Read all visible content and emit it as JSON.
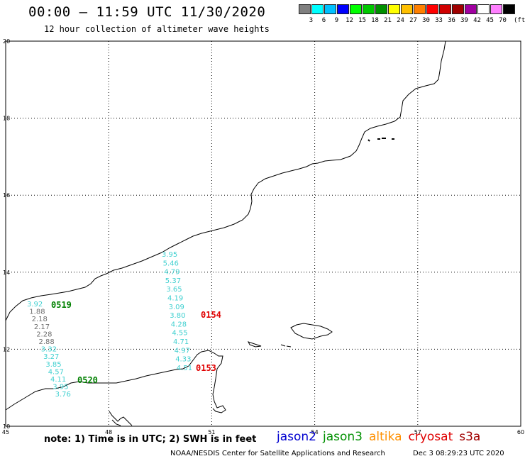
{
  "header": {
    "title": "00:00 – 11:59 UTC 11/30/2020",
    "subtitle": "12 hour collection of altimeter wave heights"
  },
  "legend": {
    "colors": [
      "#808080",
      "#00ffff",
      "#00c0ff",
      "#0000ff",
      "#00ff00",
      "#00c800",
      "#009000",
      "#ffff00",
      "#ffc000",
      "#ff8000",
      "#ff0000",
      "#d00000",
      "#a00000",
      "#a000a0",
      "#ffffff",
      "#ff80ff",
      "#000000"
    ],
    "labels": [
      "3",
      "6",
      "9",
      "12",
      "15",
      "18",
      "21",
      "24",
      "27",
      "30",
      "33",
      "36",
      "39",
      "42",
      "45",
      "70"
    ],
    "unit": "(ft)"
  },
  "axes": {
    "lon_ticks": [
      "45",
      "48",
      "51",
      "54",
      "57",
      "60"
    ],
    "lat_ticks": [
      "20",
      "18",
      "16",
      "14",
      "12",
      "10"
    ]
  },
  "passes": [
    {
      "label": "0519",
      "color": "#008000"
    },
    {
      "label": "0520",
      "color": "#008000"
    },
    {
      "label": "0154",
      "color": "#e00000"
    },
    {
      "label": "0153",
      "color": "#e00000"
    }
  ],
  "track_west": [
    {
      "v": "3.92",
      "color": "#40d0d0"
    },
    {
      "v": "1.88",
      "color": "#707070"
    },
    {
      "v": "2.18",
      "color": "#707070"
    },
    {
      "v": "2.17",
      "color": "#707070"
    },
    {
      "v": "2.28",
      "color": "#707070"
    },
    {
      "v": "2.88",
      "color": "#707070"
    },
    {
      "v": "3.32",
      "color": "#40d0d0"
    },
    {
      "v": "3.27",
      "color": "#40d0d0"
    },
    {
      "v": "3.85",
      "color": "#40d0d0"
    },
    {
      "v": "4.57",
      "color": "#40d0d0"
    },
    {
      "v": "4.11",
      "color": "#40d0d0"
    },
    {
      "v": "3.95",
      "color": "#40d0d0"
    },
    {
      "v": "3.76",
      "color": "#40d0d0"
    }
  ],
  "track_east": [
    {
      "v": "3.95",
      "color": "#40d0d0"
    },
    {
      "v": "5.46",
      "color": "#40d0d0"
    },
    {
      "v": "4.79",
      "color": "#40d0d0"
    },
    {
      "v": "5.37",
      "color": "#40d0d0"
    },
    {
      "v": "3.65",
      "color": "#40d0d0"
    },
    {
      "v": "4.19",
      "color": "#40d0d0"
    },
    {
      "v": "3.09",
      "color": "#40d0d0"
    },
    {
      "v": "3.80",
      "color": "#40d0d0"
    },
    {
      "v": "4.28",
      "color": "#40d0d0"
    },
    {
      "v": "4.55",
      "color": "#40d0d0"
    },
    {
      "v": "4.71",
      "color": "#40d0d0"
    },
    {
      "v": "4.97",
      "color": "#40d0d0"
    },
    {
      "v": "4.33",
      "color": "#40d0d0"
    },
    {
      "v": "4.51",
      "color": "#40d0d0"
    }
  ],
  "note": "note: 1) Time is in UTC; 2) SWH is in feet",
  "satellites": [
    {
      "name": "jason2",
      "color": "#0000d0"
    },
    {
      "name": "jason3",
      "color": "#009000"
    },
    {
      "name": "altika",
      "color": "#ff9000"
    },
    {
      "name": "cryosat",
      "color": "#e00000"
    },
    {
      "name": "s3a",
      "color": "#a00000"
    }
  ],
  "footer": {
    "credit": "NOAA/NESDIS Center for Satellite Applications and Research",
    "timestamp": "Dec  3 08:29:23 UTC 2020"
  }
}
